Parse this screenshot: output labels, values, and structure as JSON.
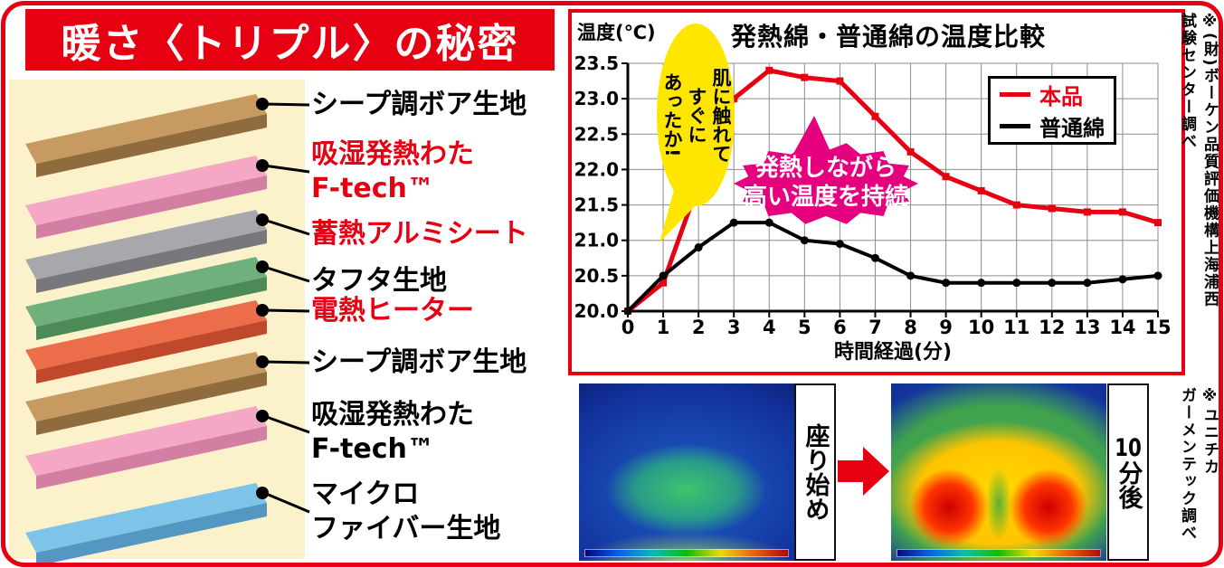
{
  "colors": {
    "accent_red": "#E60012"
  },
  "banner": {
    "title": "暖さ〈トリプル〉の秘密"
  },
  "layers": {
    "background_color": "#FBF2CC",
    "items": [
      {
        "label_lines": [
          "シープ調ボア生地"
        ],
        "label_color": "#000000",
        "top_color": "#C79A62",
        "front_color": "#8F6B3E"
      },
      {
        "label_lines": [
          "吸湿発熱わた",
          "F-tech™"
        ],
        "label_color": "#E60012",
        "top_color": "#F5A8C6",
        "front_color": "#D37FA4"
      },
      {
        "label_lines": [
          "蓄熱アルミシート"
        ],
        "label_color": "#E60012",
        "top_color": "#A8A8AC",
        "front_color": "#78787C"
      },
      {
        "label_lines": [
          "タフタ生地"
        ],
        "label_color": "#000000",
        "top_color": "#6FB07C",
        "front_color": "#4C8A58"
      },
      {
        "label_lines": [
          "電熱ヒーター"
        ],
        "label_color": "#E60012",
        "top_color": "#EC6D4A",
        "front_color": "#C1492B"
      },
      {
        "label_lines": [
          "シープ調ボア生地"
        ],
        "label_color": "#000000",
        "top_color": "#C79A62",
        "front_color": "#8F6B3E"
      },
      {
        "label_lines": [
          "吸湿発熱わた",
          "F-tech™"
        ],
        "label_color": "#000000",
        "top_color": "#F5A8C6",
        "front_color": "#D37FA4"
      },
      {
        "label_lines": [
          "マイクロ",
          "ファイバー生地"
        ],
        "label_color": "#000000",
        "top_color": "#7EC3E8",
        "front_color": "#5497C2"
      }
    ]
  },
  "chart_data": {
    "type": "line",
    "title": "発熱綿・普通綿の温度比較",
    "ylabel": "温度(℃)",
    "xlabel": "時間経過(分)",
    "x": [
      0,
      1,
      2,
      3,
      4,
      5,
      6,
      7,
      8,
      9,
      10,
      11,
      12,
      13,
      14,
      15
    ],
    "ylim": [
      20.0,
      23.5
    ],
    "yticks": [
      23.5,
      23.0,
      22.5,
      22.0,
      21.5,
      21.0,
      20.5,
      20.0
    ],
    "grid": true,
    "legend_position": "top-right",
    "series": [
      {
        "name": "本品",
        "color": "#E60012",
        "values": [
          20.0,
          20.4,
          21.8,
          23.0,
          23.4,
          23.3,
          23.25,
          22.75,
          22.25,
          21.9,
          21.7,
          21.5,
          21.45,
          21.4,
          21.4,
          21.25
        ]
      },
      {
        "name": "普通綿",
        "color": "#000000",
        "values": [
          20.0,
          20.5,
          20.9,
          21.25,
          21.25,
          21.0,
          20.95,
          20.75,
          20.5,
          20.4,
          20.4,
          20.4,
          20.4,
          20.4,
          20.45,
          20.5
        ]
      }
    ],
    "annotations": {
      "skin_bubble": {
        "lines": [
          "肌に触れて",
          "すぐに",
          "あったか!"
        ],
        "bg": "#FFE600"
      },
      "burst": {
        "lines": [
          "発熱しながら",
          "高い温度を持続"
        ],
        "bg": "#E5007E"
      }
    },
    "source_note_lines": [
      "※(財)ボーケン品質評価機構上海浦西",
      "試験センター調べ"
    ]
  },
  "thermal": {
    "before_label": "座り始め",
    "after_label_number": "10",
    "after_label_rest": "分後",
    "source_note_lines": [
      "※ユニチカ",
      "ガーメンテック調べ"
    ]
  }
}
